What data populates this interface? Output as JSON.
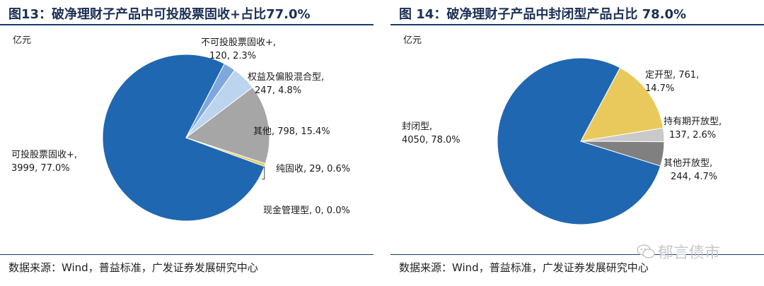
{
  "colors": {
    "blue": "#1f67b1",
    "light_blue": "#7fa9de",
    "pale_blue": "#bcd4ee",
    "gray": "#a6a6a6",
    "yellow": "#e9c95c",
    "light_gray": "#c9c9c9",
    "dark_gray": "#808080"
  },
  "watermark": {
    "text": "郁言债市",
    "icon": "wechat-icon"
  },
  "chart_data": [
    {
      "type": "pie",
      "title": "图13：破净理财子产品中可投股票固收+占比77.0%",
      "unit_label": "亿元",
      "source": "数据来源：Wind，普益标准，广发证券发展研究中心",
      "slices": [
        {
          "name": "可投股票固收+",
          "value": 3999,
          "pct": "77.0%",
          "color": "#1f67b1",
          "label_line1": "可投股票固收+,",
          "label_line2": "3999, 77.0%"
        },
        {
          "name": "不可投股票固收+",
          "value": 120,
          "pct": "2.3%",
          "color": "#7fa9de",
          "label_line1": "不可投股票固收+,",
          "label_line2": "120, 2.3%"
        },
        {
          "name": "权益及偏股混合型",
          "value": 247,
          "pct": "4.8%",
          "color": "#bcd4ee",
          "label_line1": "权益及偏股混合型,",
          "label_line2": "247, 4.8%"
        },
        {
          "name": "其他",
          "value": 798,
          "pct": "15.4%",
          "color": "#a6a6a6",
          "label_line1": "其他, 798, 15.4%",
          "label_line2": ""
        },
        {
          "name": "纯固收",
          "value": 29,
          "pct": "0.6%",
          "color": "#e9c95c",
          "label_line1": "纯固收, 29, 0.6%",
          "label_line2": ""
        },
        {
          "name": "现金管理型",
          "value": 0,
          "pct": "0.0%",
          "color": "#444444",
          "label_line1": "现金管理型, 0, 0.0%",
          "label_line2": ""
        }
      ]
    },
    {
      "type": "pie",
      "title": "图 14：破净理财子产品中封闭型产品占比 78.0%",
      "unit_label": "亿元",
      "source": "数据来源：Wind，普益标准，广发证券发展研究中心",
      "slices": [
        {
          "name": "封闭型",
          "value": 4050,
          "pct": "78.0%",
          "color": "#1f67b1",
          "label_line1": "封闭型,",
          "label_line2": "4050, 78.0%"
        },
        {
          "name": "定开型",
          "value": 761,
          "pct": "14.7%",
          "color": "#e9c95c",
          "label_line1": "定开型, 761,",
          "label_line2": "14.7%"
        },
        {
          "name": "持有期开放型",
          "value": 137,
          "pct": "2.6%",
          "color": "#c9c9c9",
          "label_line1": "持有期开放型,",
          "label_line2": "137, 2.6%"
        },
        {
          "name": "其他开放型",
          "value": 244,
          "pct": "4.7%",
          "color": "#808080",
          "label_line1": "其他开放型,",
          "label_line2": "244, 4.7%"
        }
      ]
    }
  ]
}
